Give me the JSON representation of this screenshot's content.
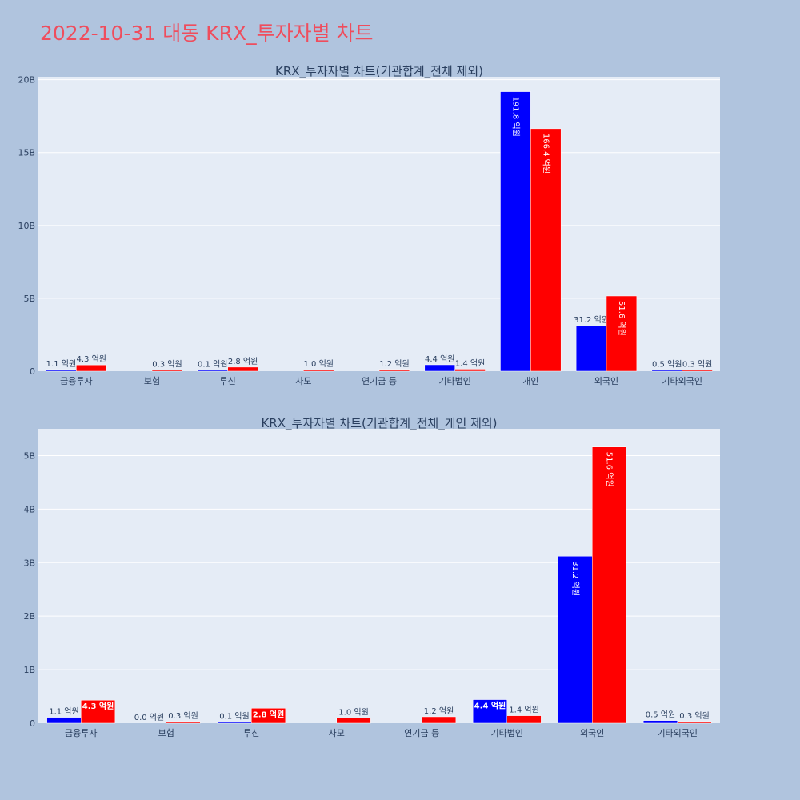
{
  "page_title": "2022-10-31 대동 KRX_투자자별 차트",
  "colors": {
    "background": "#b0c4de",
    "plot_bg": "#e5ecf6",
    "buy": "#0000ff",
    "sell": "#ff0000",
    "title": "#ef4d5d",
    "text": "#2a3f5f"
  },
  "chart_data": [
    {
      "type": "bar",
      "title": "KRX_투자자별 차트(기관합계_전체 제외)",
      "categories": [
        "금융투자",
        "보험",
        "투신",
        "사모",
        "연기금 등",
        "기타법인",
        "개인",
        "외국인",
        "기타외국인"
      ],
      "ylim": [
        0,
        20.2
      ],
      "yticks": [
        0,
        5,
        10,
        15,
        20
      ],
      "ytick_labels": [
        "0",
        "5B",
        "10B",
        "15B",
        "20B"
      ],
      "grid": true,
      "series": [
        {
          "color": "#0000ff",
          "values": [
            0.11,
            0.0,
            0.01,
            0.0,
            0.0,
            0.44,
            19.18,
            3.12,
            0.05
          ],
          "labels": [
            "1.1 억원",
            "",
            "0.1 억원",
            "",
            "",
            "4.4 억원",
            "191.8 억원",
            "31.2 억원",
            "0.5 억원"
          ]
        },
        {
          "color": "#ff0000",
          "values": [
            0.43,
            0.03,
            0.28,
            0.1,
            0.12,
            0.14,
            16.64,
            5.16,
            0.03
          ],
          "labels": [
            "4.3 억원",
            "0.3 억원",
            "2.8 억원",
            "1.0 억원",
            "1.2 억원",
            "1.4 억원",
            "166.4 억원",
            "51.6 억원",
            "0.3 억원"
          ]
        }
      ]
    },
    {
      "type": "bar",
      "title": "KRX_투자자별 차트(기관합계_전체_개인 제외)",
      "categories": [
        "금융투자",
        "보험",
        "투신",
        "사모",
        "연기금 등",
        "기타법인",
        "외국인",
        "기타외국인"
      ],
      "ylim": [
        0,
        5.5
      ],
      "yticks": [
        0,
        1,
        2,
        3,
        4,
        5
      ],
      "ytick_labels": [
        "0",
        "1B",
        "2B",
        "3B",
        "4B",
        "5B"
      ],
      "grid": true,
      "series": [
        {
          "color": "#0000ff",
          "values": [
            0.11,
            0.0,
            0.01,
            0.0,
            0.0,
            0.44,
            3.12,
            0.05
          ],
          "labels": [
            "1.1 억원",
            "0.0 억원",
            "0.1 억원",
            "",
            "",
            "4.4 억원",
            "31.2 억원",
            "0.5 억원"
          ]
        },
        {
          "color": "#ff0000",
          "values": [
            0.43,
            0.03,
            0.28,
            0.1,
            0.12,
            0.14,
            5.16,
            0.03
          ],
          "labels": [
            "4.3 억원",
            "0.3 억원",
            "2.8 억원",
            "1.0 억원",
            "1.2 억원",
            "1.4 억원",
            "51.6 억원",
            "0.3 억원"
          ]
        }
      ]
    }
  ]
}
